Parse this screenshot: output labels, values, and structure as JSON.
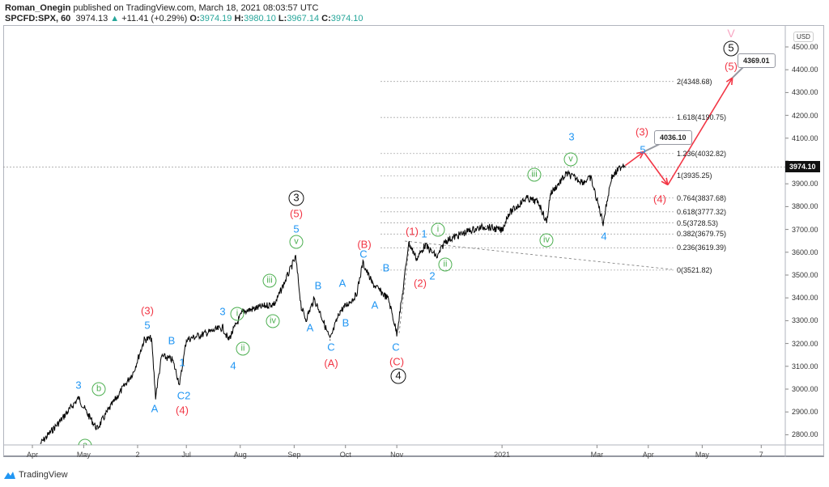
{
  "header": {
    "author": "Roman_Onegin",
    "published": "published on TradingView.com, March 18, 2021 08:03:57 UTC",
    "symbol": "SPCFD:SPX, 60",
    "last": "3974.13",
    "change": "+11.41 (+0.29%)",
    "o_label": "O:",
    "o": "3974.19",
    "h_label": "H:",
    "h": "3980.10",
    "l_label": "L:",
    "l": "3967.14",
    "c_label": "C:",
    "c": "3974.10"
  },
  "footer": {
    "brand": "TradingView"
  },
  "chart_data": {
    "type": "line",
    "title": "SPCFD:SPX, 60",
    "currency": "USD",
    "ylim": [
      2750,
      4560
    ],
    "yticks": [
      "4500.00",
      "4400.00",
      "4300.00",
      "4200.00",
      "4100.00",
      "4000.00",
      "3900.00",
      "3800.00",
      "3700.00",
      "3600.00",
      "3500.00",
      "3400.00",
      "3300.00",
      "3200.00",
      "3100.00",
      "3000.00",
      "2900.00",
      "2800.00"
    ],
    "xunit": "months since 2020-04-01",
    "xticks": [
      "Apr",
      "May",
      "2",
      "Jul",
      "Aug",
      "Sep",
      "Oct",
      "Nov",
      "2021",
      "Mar",
      "Apr",
      "May",
      "7"
    ],
    "xtick_values": [
      0,
      1,
      2.05,
      3,
      4.05,
      5.1,
      6.1,
      7.1,
      9.15,
      11.0,
      12.0,
      13.05,
      14.2
    ],
    "current_price": "3974.10",
    "series": [
      {
        "name": "SPX",
        "x": [
          0.16,
          0.55,
          0.9,
          1.06,
          1.26,
          1.5,
          1.97,
          2.18,
          2.32,
          2.4,
          2.52,
          2.73,
          2.87,
          3.0,
          3.47,
          3.71,
          3.82,
          4.1,
          4.73,
          5.13,
          5.24,
          5.33,
          5.49,
          5.6,
          5.8,
          5.99,
          6.31,
          6.44,
          6.62,
          6.78,
          6.94,
          7.1,
          7.22,
          7.33,
          7.49,
          7.65,
          7.89,
          8.04,
          8.52,
          8.83,
          9.15,
          9.27,
          9.62,
          9.86,
          10.02,
          10.09,
          10.41,
          10.73,
          10.88,
          11.12,
          11.28,
          11.51,
          11.55
        ],
        "y": [
          2762,
          2862,
          2961,
          2897,
          2826,
          2915,
          3075,
          3216,
          3223,
          2968,
          3145,
          3128,
          3021,
          3216,
          3252,
          3270,
          3216,
          3340,
          3376,
          3578,
          3358,
          3305,
          3394,
          3340,
          3216,
          3340,
          3411,
          3553,
          3464,
          3429,
          3394,
          3245,
          3429,
          3642,
          3571,
          3631,
          3578,
          3649,
          3695,
          3713,
          3695,
          3766,
          3837,
          3819,
          3730,
          3855,
          3944,
          3908,
          3926,
          3730,
          3926,
          3986,
          3974
        ]
      }
    ],
    "projection": {
      "x": [
        11.55,
        11.91,
        12.38,
        13.64
      ],
      "y": [
        3980,
        4040,
        3895,
        4365
      ]
    },
    "fib_levels": [
      {
        "ratio": "2",
        "price": "4348.68",
        "label": "2(4348.68)"
      },
      {
        "ratio": "1.618",
        "price": "4190.75",
        "label": "1.618(4190.75)"
      },
      {
        "ratio": "1.236",
        "price": "4032.82",
        "label": "1.236(4032.82)"
      },
      {
        "ratio": "1",
        "price": "3935.25",
        "label": "1(3935.25)"
      },
      {
        "ratio": "0.764",
        "price": "3837.68",
        "label": "0.764(3837.68)"
      },
      {
        "ratio": "0.618",
        "price": "3777.32",
        "label": "0.618(3777.32)"
      },
      {
        "ratio": "0.5",
        "price": "3728.53",
        "label": "0.5(3728.53)"
      },
      {
        "ratio": "0.382",
        "price": "3679.75",
        "label": "0.382(3679.75)"
      },
      {
        "ratio": "0.236",
        "price": "3619.39",
        "label": "0.236(3619.39)"
      },
      {
        "ratio": "0",
        "price": "3521.82",
        "label": "0(3521.82)"
      }
    ],
    "callouts": [
      "4036.10",
      "4369.01"
    ],
    "wave_labels": {
      "major": [
        "3",
        "4",
        "5"
      ],
      "red": [
        "(3)",
        "(4)",
        "(5)",
        "(A)",
        "(B)",
        "(1)",
        "(2)",
        "(C)",
        "(3)",
        "(4)",
        "(5)"
      ],
      "blue": [
        "3",
        "A",
        "5",
        "B",
        "1",
        "C2",
        "3",
        "4",
        "5",
        "B",
        "A",
        "C",
        "A",
        "B",
        "A",
        "C",
        "B",
        "C",
        "1",
        "2",
        "3",
        "5",
        "4"
      ],
      "green": [
        "b",
        "a",
        "i",
        "ii",
        "iii",
        "iv",
        "v",
        "i",
        "ii",
        "iii",
        "iv",
        "v"
      ],
      "pink": "V"
    },
    "colors": {
      "price": "#000000",
      "red": "#f23645",
      "blue": "#2196f3",
      "green": "#4caf50"
    }
  }
}
